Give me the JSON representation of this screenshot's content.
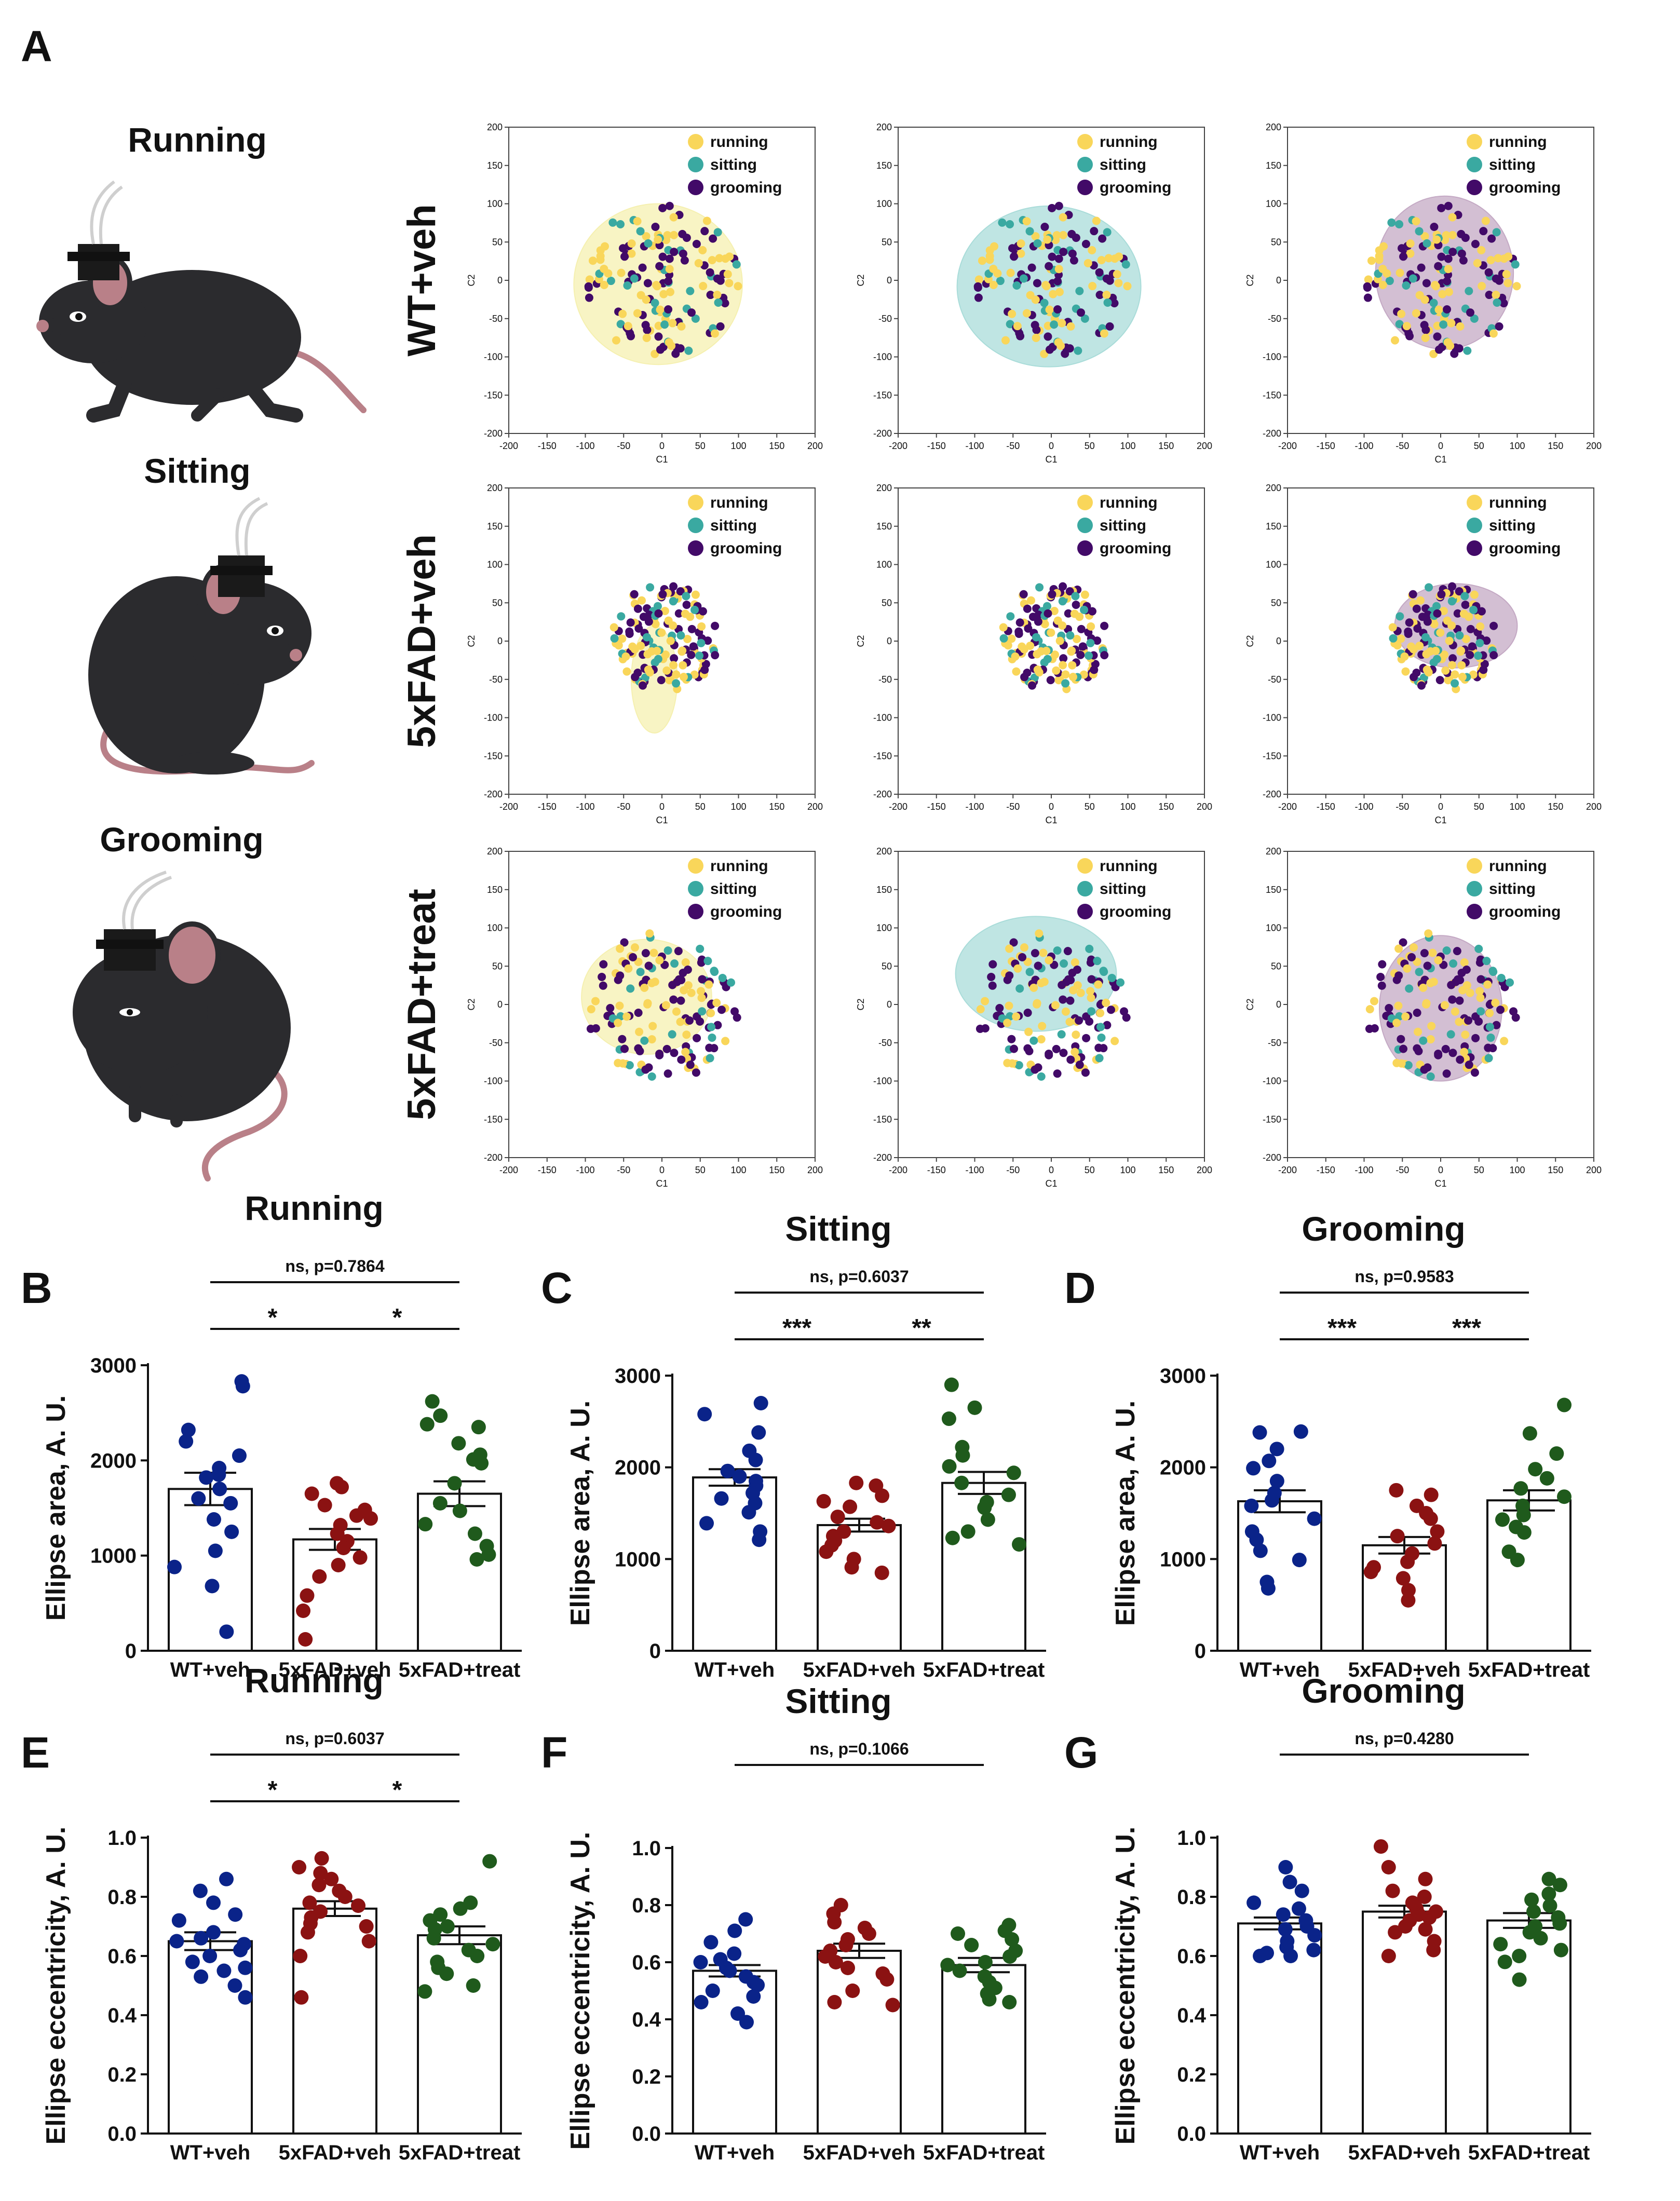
{
  "panel_labels": {
    "A": "A",
    "B": "B",
    "C": "C",
    "D": "D",
    "E": "E",
    "F": "F",
    "G": "G"
  },
  "behaviors": {
    "running": "Running",
    "sitting": "Sitting",
    "grooming": "Grooming"
  },
  "row_labels": [
    "WT+veh",
    "5xFAD+veh",
    "5xFAD+treat"
  ],
  "legend": {
    "running": "running",
    "sitting": "sitting",
    "grooming": "grooming"
  },
  "colors": {
    "running": "#f9d65a",
    "sitting": "#3aa9a1",
    "grooming": "#420a68",
    "wt": "#0a2389",
    "fad": "#8b1212",
    "treat": "#1f5a1c",
    "ellipse_running": "#f5f0b0",
    "ellipse_sitting": "#a9dcd9",
    "ellipse_grooming": "#c4a9c4",
    "mouse_body": "#2b2b2e",
    "mouse_pink": "#b98088"
  },
  "chart_data": [
    {
      "type": "scatter",
      "panel": "A",
      "xlabel": "C1",
      "ylabel": "C2",
      "xlim": [
        -200,
        200
      ],
      "ylim": [
        -200,
        200
      ],
      "ticks": [
        "-200",
        "-150",
        "-100",
        "-50",
        "0",
        "50",
        "100",
        "150",
        "200"
      ],
      "rows": [
        {
          "label": "WT+veh",
          "cluster": {
            "cx": 0,
            "cy": 0,
            "rx": 100,
            "ry": 100
          },
          "ellipses": [
            {
              "behavior": "running",
              "cx": -5,
              "cy": -5,
              "rx": 110,
              "ry": 105
            },
            {
              "behavior": "sitting",
              "cx": -3,
              "cy": -8,
              "rx": 120,
              "ry": 105
            },
            {
              "behavior": "grooming",
              "cx": 5,
              "cy": 10,
              "rx": 90,
              "ry": 100
            }
          ]
        },
        {
          "label": "5xFAD+veh",
          "cluster": {
            "cx": 5,
            "cy": 5,
            "rx": 70,
            "ry": 70
          },
          "ellipses": [
            {
              "behavior": "running",
              "cx": -10,
              "cy": -50,
              "rx": 30,
              "ry": 70
            },
            {
              "behavior": null
            },
            {
              "behavior": "grooming",
              "cx": 20,
              "cy": 20,
              "rx": 80,
              "ry": 55
            }
          ]
        },
        {
          "label": "5xFAD+treat",
          "cluster": {
            "cx": 0,
            "cy": 0,
            "rx": 100,
            "ry": 100
          },
          "ellipses": [
            {
              "behavior": "running",
              "cx": -20,
              "cy": 10,
              "rx": 85,
              "ry": 75
            },
            {
              "behavior": "sitting",
              "cx": -20,
              "cy": 40,
              "rx": 105,
              "ry": 75
            },
            {
              "behavior": "grooming",
              "cx": 0,
              "cy": -5,
              "rx": 80,
              "ry": 95
            }
          ]
        }
      ]
    },
    {
      "type": "bar",
      "panel": "B",
      "title": "Running",
      "ylabel": "Ellipse area, A. U.",
      "ylim": [
        0,
        3000
      ],
      "yticks": [
        "0",
        "1000",
        "2000",
        "3000"
      ],
      "categories": [
        "WT+veh",
        "5xFAD+veh",
        "5xFAD+treat"
      ],
      "means": [
        1700,
        1170,
        1650
      ],
      "sems": [
        170,
        110,
        130
      ],
      "points": [
        [
          2830,
          2780,
          2320,
          2200,
          2050,
          1920,
          1850,
          1820,
          1700,
          1600,
          1550,
          1380,
          1250,
          1050,
          880,
          680,
          200
        ],
        [
          1760,
          1720,
          1650,
          1530,
          1480,
          1420,
          1390,
          1320,
          1230,
          1150,
          1080,
          980,
          900,
          780,
          580,
          420,
          120
        ],
        [
          2620,
          2470,
          2380,
          2350,
          2180,
          2060,
          2010,
          1970,
          1760,
          1550,
          1470,
          1330,
          1230,
          1100,
          1010,
          960
        ]
      ],
      "comparisons": [
        {
          "from": 0,
          "to": 2,
          "label": "ns, p=0.7864",
          "level": 2
        },
        {
          "from": 0,
          "to": 1,
          "label": "*",
          "level": 1
        },
        {
          "from": 1,
          "to": 2,
          "label": "*",
          "level": 1
        }
      ]
    },
    {
      "type": "bar",
      "panel": "C",
      "title": "Sitting",
      "ylabel": "Ellipse area, A. U.",
      "ylim": [
        0,
        3000
      ],
      "yticks": [
        "0",
        "1000",
        "2000",
        "3000"
      ],
      "categories": [
        "WT+veh",
        "5xFAD+veh",
        "5xFAD+treat"
      ],
      "means": [
        1890,
        1370,
        1830
      ],
      "sems": [
        90,
        70,
        120
      ],
      "points": [
        [
          2700,
          2580,
          2380,
          2180,
          2080,
          1960,
          1900,
          1850,
          1800,
          1720,
          1660,
          1610,
          1510,
          1390,
          1300,
          1210
        ],
        [
          1830,
          1800,
          1690,
          1630,
          1570,
          1460,
          1400,
          1360,
          1300,
          1250,
          1200,
          1150,
          1080,
          1000,
          910,
          850
        ],
        [
          2900,
          2650,
          2530,
          2220,
          2130,
          2010,
          1940,
          1830,
          1700,
          1620,
          1560,
          1430,
          1300,
          1230,
          1160
        ]
      ],
      "comparisons": [
        {
          "from": 0,
          "to": 2,
          "label": "ns, p=0.6037",
          "level": 2
        },
        {
          "from": 0,
          "to": 1,
          "label": "***",
          "level": 1
        },
        {
          "from": 1,
          "to": 2,
          "label": "**",
          "level": 1
        }
      ]
    },
    {
      "type": "bar",
      "panel": "D",
      "title": "Grooming",
      "ylabel": "Ellipse area, A. U.",
      "ylim": [
        0,
        3000
      ],
      "yticks": [
        "0",
        "1000",
        "2000",
        "3000"
      ],
      "categories": [
        "WT+veh",
        "5xFAD+veh",
        "5xFAD+treat"
      ],
      "means": [
        1630,
        1150,
        1640
      ],
      "sems": [
        120,
        90,
        110
      ],
      "points": [
        [
          2390,
          2380,
          2200,
          2070,
          1990,
          1850,
          1720,
          1640,
          1580,
          1440,
          1300,
          1210,
          1090,
          990,
          750,
          680
        ],
        [
          1750,
          1700,
          1580,
          1500,
          1440,
          1300,
          1250,
          1170,
          1060,
          970,
          910,
          860,
          790,
          660,
          550
        ],
        [
          2680,
          2370,
          2150,
          1980,
          1880,
          1770,
          1680,
          1580,
          1480,
          1430,
          1350,
          1290,
          1080,
          990
        ]
      ],
      "comparisons": [
        {
          "from": 0,
          "to": 2,
          "label": "ns, p=0.9583",
          "level": 2
        },
        {
          "from": 0,
          "to": 1,
          "label": "***",
          "level": 1
        },
        {
          "from": 1,
          "to": 2,
          "label": "***",
          "level": 1
        }
      ]
    },
    {
      "type": "bar",
      "panel": "E",
      "title": "Running",
      "ylabel": "Ellipse eccentricity, A. U.",
      "ylim": [
        0,
        1.0
      ],
      "yticks": [
        "0.0",
        "0.2",
        "0.4",
        "0.6",
        "0.8",
        "1.0"
      ],
      "categories": [
        "WT+veh",
        "5xFAD+veh",
        "5xFAD+treat"
      ],
      "means": [
        0.65,
        0.76,
        0.67
      ],
      "sems": [
        0.03,
        0.025,
        0.03
      ],
      "points": [
        [
          0.86,
          0.82,
          0.78,
          0.74,
          0.72,
          0.68,
          0.66,
          0.65,
          0.64,
          0.62,
          0.6,
          0.58,
          0.56,
          0.55,
          0.53,
          0.5,
          0.46
        ],
        [
          0.93,
          0.9,
          0.88,
          0.86,
          0.84,
          0.82,
          0.8,
          0.78,
          0.77,
          0.75,
          0.73,
          0.71,
          0.7,
          0.68,
          0.65,
          0.6,
          0.46
        ],
        [
          0.92,
          0.78,
          0.76,
          0.74,
          0.72,
          0.7,
          0.69,
          0.66,
          0.64,
          0.62,
          0.6,
          0.58,
          0.56,
          0.54,
          0.5,
          0.48
        ]
      ],
      "comparisons": [
        {
          "from": 0,
          "to": 2,
          "label": "ns, p=0.6037",
          "level": 2
        },
        {
          "from": 0,
          "to": 1,
          "label": "*",
          "level": 1
        },
        {
          "from": 1,
          "to": 2,
          "label": "*",
          "level": 1
        }
      ]
    },
    {
      "type": "bar",
      "panel": "F",
      "title": "Sitting",
      "ylabel": "Ellipse eccentricity, A. U.",
      "ylim": [
        0,
        1.0
      ],
      "yticks": [
        "0.0",
        "0.2",
        "0.4",
        "0.6",
        "0.8",
        "1.0"
      ],
      "categories": [
        "WT+veh",
        "5xFAD+veh",
        "5xFAD+treat"
      ],
      "means": [
        0.57,
        0.64,
        0.59
      ],
      "sems": [
        0.02,
        0.025,
        0.025
      ],
      "points": [
        [
          0.75,
          0.71,
          0.67,
          0.63,
          0.61,
          0.6,
          0.58,
          0.57,
          0.55,
          0.53,
          0.52,
          0.5,
          0.48,
          0.46,
          0.42,
          0.39
        ],
        [
          0.8,
          0.77,
          0.74,
          0.72,
          0.7,
          0.68,
          0.66,
          0.64,
          0.62,
          0.6,
          0.58,
          0.56,
          0.54,
          0.5,
          0.46,
          0.45
        ],
        [
          0.73,
          0.71,
          0.7,
          0.68,
          0.66,
          0.64,
          0.62,
          0.6,
          0.59,
          0.57,
          0.55,
          0.53,
          0.51,
          0.49,
          0.47,
          0.46
        ]
      ],
      "comparisons": [
        {
          "from": 0,
          "to": 2,
          "label": "ns, p=0.1066",
          "level": 2
        }
      ]
    },
    {
      "type": "bar",
      "panel": "G",
      "title": "Grooming",
      "ylabel": "Ellipse eccentricity, A. U.",
      "ylim": [
        0,
        1.0
      ],
      "yticks": [
        "0.0",
        "0.2",
        "0.4",
        "0.6",
        "0.8",
        "1.0"
      ],
      "categories": [
        "WT+veh",
        "5xFAD+veh",
        "5xFAD+treat"
      ],
      "means": [
        0.71,
        0.75,
        0.72
      ],
      "sems": [
        0.02,
        0.02,
        0.025
      ],
      "points": [
        [
          0.9,
          0.85,
          0.82,
          0.78,
          0.76,
          0.74,
          0.72,
          0.7,
          0.69,
          0.67,
          0.65,
          0.63,
          0.62,
          0.61,
          0.6,
          0.6
        ],
        [
          0.97,
          0.9,
          0.86,
          0.82,
          0.8,
          0.78,
          0.76,
          0.75,
          0.74,
          0.73,
          0.72,
          0.7,
          0.69,
          0.68,
          0.65,
          0.62,
          0.6
        ],
        [
          0.86,
          0.84,
          0.81,
          0.79,
          0.77,
          0.75,
          0.73,
          0.71,
          0.7,
          0.68,
          0.66,
          0.64,
          0.62,
          0.6,
          0.58,
          0.52
        ]
      ],
      "comparisons": [
        {
          "from": 0,
          "to": 2,
          "label": "ns, p=0.4280",
          "level": 2
        }
      ]
    }
  ]
}
